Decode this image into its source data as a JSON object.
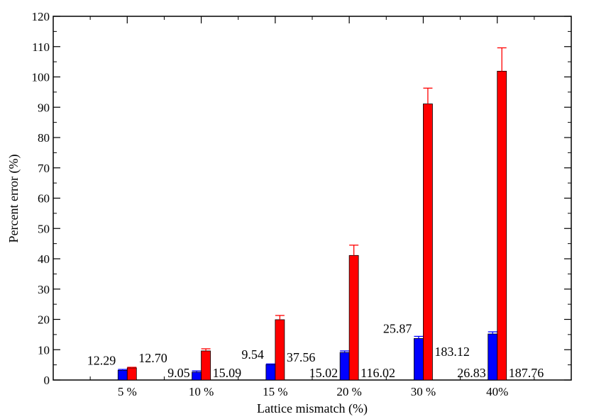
{
  "chart_data": {
    "type": "bar",
    "xlabel": "Lattice mismatch (%)",
    "ylabel": "Percent error (%)",
    "ylim": [
      0,
      120
    ],
    "ytick_step": 10,
    "grid": false,
    "categories": [
      "5 %",
      "10 %",
      "15 %",
      "20 %",
      "30 %",
      "40%"
    ],
    "series": [
      {
        "color": "#0000ff",
        "values": [
          3.2,
          2.6,
          5.1,
          9.1,
          13.7,
          15.2
        ],
        "error_upper": [
          3.5,
          3.0,
          5.3,
          9.6,
          14.4,
          15.9
        ],
        "labels": [
          "12.29",
          "9.05",
          "9.54",
          "15.02",
          "25.87",
          "26.83"
        ]
      },
      {
        "color": "#ff0000",
        "values": [
          4.0,
          9.6,
          19.9,
          41.1,
          91.1,
          101.9
        ],
        "error_upper": [
          4.2,
          10.3,
          21.3,
          44.5,
          96.3,
          109.6
        ],
        "labels": [
          "12.70",
          "15.09",
          "37.56",
          "116.02",
          "183.12",
          "187.76"
        ]
      }
    ]
  }
}
